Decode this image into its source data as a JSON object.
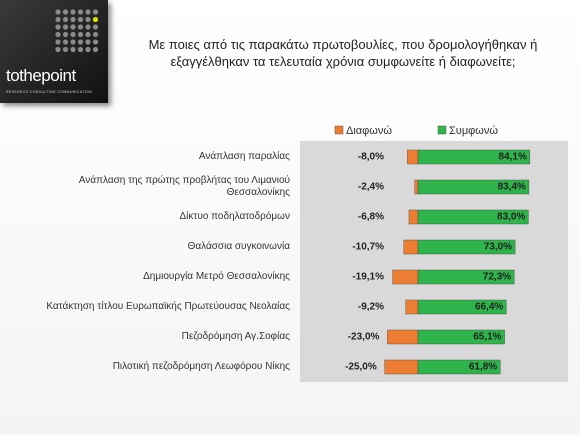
{
  "logo": {
    "name": "tothepoint",
    "tagline": "RESEARCH CONSULTING COMMUNICATION"
  },
  "chart_data": {
    "type": "diverging_bar",
    "title": "Με ποιες από τις παρακάτω πρωτοβουλίες, που δρομολογήθηκαν ή\nεξαγγέλθηκαν τα τελευταία χρόνια συμφωνείτε ή διαφωνείτε;",
    "categories": [
      "Ανάπλαση παραλίας",
      "Ανάπλαση της πρώτης προβλήτας του Λιμανιού\nΘεσσαλονίκης",
      "Δίκτυο ποδηλατοδρόμων",
      "Θαλάσσια συγκοινωνία",
      "Δημιουργία Μετρό Θεσσαλονίκης",
      "Κατάκτηση τίτλου Ευρωπαϊκής Πρωτεύουσας Νεολαίας",
      "Πεζοδρόμηση Αγ.Σοφίας",
      "Πιλοτική πεζοδρόμηση Λεωφόρου Νίκης"
    ],
    "series": [
      {
        "name": "Διαφωνώ",
        "color": "#ED7D31",
        "values": [
          -8.0,
          -2.4,
          -6.8,
          -10.7,
          -19.1,
          -9.2,
          -23.0,
          -25.0
        ],
        "value_labels": [
          "-8,0%",
          "-2,4%",
          "-6,8%",
          "-10,7%",
          "-19,1%",
          "-9,2%",
          "-23,0%",
          "-25,0%"
        ]
      },
      {
        "name": "Συμφωνώ",
        "color": "#2EB44A",
        "values": [
          84.1,
          83.4,
          83.0,
          73.0,
          72.3,
          66.4,
          65.1,
          61.8
        ],
        "value_labels": [
          "84,1%",
          "83,4%",
          "83,0%",
          "73,0%",
          "72,3%",
          "66,4%",
          "65,1%",
          "61,8%"
        ]
      }
    ],
    "legend": "top"
  }
}
